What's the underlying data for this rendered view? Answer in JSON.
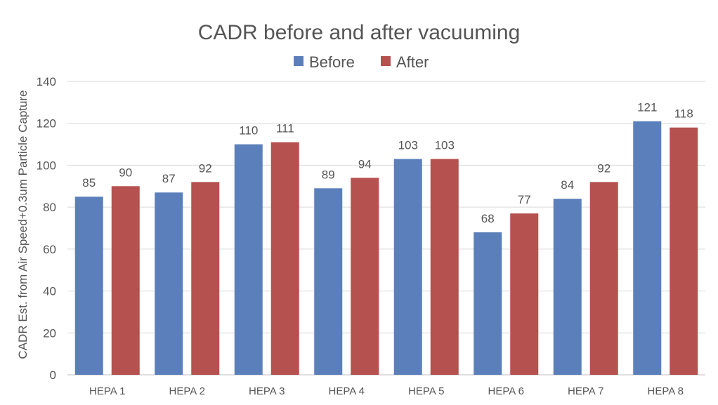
{
  "chart_data": {
    "type": "bar",
    "title": "CADR before and after vacuuming",
    "xlabel": "",
    "ylabel": "CADR Est. from Air Speed+0.3um Particle Capture",
    "categories": [
      "HEPA 1",
      "HEPA 2",
      "HEPA 3",
      "HEPA 4",
      "HEPA 5",
      "HEPA 6",
      "HEPA 7",
      "HEPA 8"
    ],
    "series": [
      {
        "name": "Before",
        "color": "#5B7FBA",
        "values": [
          85,
          87,
          110,
          89,
          103,
          68,
          84,
          121
        ]
      },
      {
        "name": "After",
        "color": "#B5514E",
        "values": [
          90,
          92,
          111,
          94,
          103,
          77,
          92,
          118
        ]
      }
    ],
    "ylim": [
      0,
      140
    ],
    "yticks": [
      0,
      20,
      40,
      60,
      80,
      100,
      120,
      140
    ],
    "grid": true,
    "legend_position": "top"
  }
}
